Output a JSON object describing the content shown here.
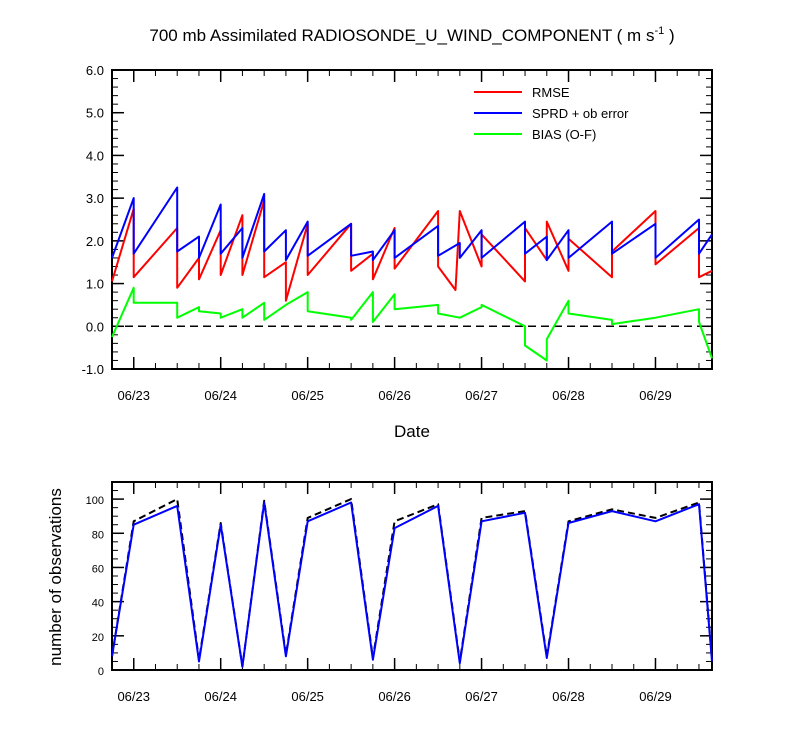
{
  "chart_data": [
    {
      "type": "line",
      "title": "700 mb Assimilated RADIOSONDE_U_WIND_COMPONENT ( m s",
      "title_sup": "-1",
      "title_end": " )",
      "xlabel": "Date",
      "ylabel": "",
      "xlim": [
        0,
        6.9
      ],
      "ylim": [
        -1.0,
        6.0
      ],
      "y_ticks": [
        -1.0,
        0.0,
        1.0,
        2.0,
        3.0,
        4.0,
        5.0,
        6.0
      ],
      "y_tick_labels": [
        "-1.0",
        "0.0",
        "1.0",
        "2.0",
        "3.0",
        "4.0",
        "5.0",
        "6.0"
      ],
      "x_ticks": [
        0.25,
        1.25,
        2.25,
        3.25,
        4.25,
        5.25,
        6.25
      ],
      "x_tick_labels": [
        "06/23",
        "06/24",
        "06/25",
        "06/26",
        "06/27",
        "06/28",
        "06/29"
      ],
      "reference_line": {
        "y": 0,
        "style": "dashed"
      },
      "legend": "top-right",
      "series": [
        {
          "name": "RMSE",
          "color": "#ff0000",
          "x": [
            0,
            0.25,
            0.25,
            0.75,
            0.75,
            1.0,
            1.0,
            1.25,
            1.25,
            1.5,
            1.5,
            1.75,
            1.75,
            2.0,
            2.0,
            2.25,
            2.25,
            2.75,
            2.75,
            3.0,
            3.0,
            3.25,
            3.25,
            3.75,
            3.75,
            3.95,
            4.0,
            4.25,
            4.25,
            4.75,
            4.75,
            5.0,
            5.0,
            5.25,
            5.25,
            5.75,
            5.75,
            6.25,
            6.25,
            6.75,
            6.75,
            6.9
          ],
          "y": [
            1.05,
            2.75,
            1.15,
            2.3,
            0.9,
            1.6,
            1.1,
            2.25,
            1.2,
            2.6,
            1.2,
            2.95,
            1.15,
            1.5,
            0.6,
            2.4,
            1.2,
            2.4,
            1.3,
            1.7,
            1.1,
            2.3,
            1.35,
            2.7,
            1.4,
            0.85,
            2.7,
            1.4,
            2.15,
            1.05,
            2.3,
            1.55,
            2.45,
            1.3,
            2.05,
            1.15,
            1.75,
            2.7,
            1.45,
            2.3,
            1.15,
            1.3
          ]
        },
        {
          "name": "SPRD + ob error",
          "color": "#0000ff",
          "x": [
            0,
            0.25,
            0.25,
            0.75,
            0.75,
            1.0,
            1.0,
            1.25,
            1.25,
            1.5,
            1.5,
            1.75,
            1.75,
            2.0,
            2.0,
            2.25,
            2.25,
            2.75,
            2.75,
            3.0,
            3.0,
            3.25,
            3.25,
            3.75,
            3.75,
            4.0,
            4.0,
            4.25,
            4.25,
            4.75,
            4.75,
            5.0,
            5.0,
            5.25,
            5.25,
            5.75,
            5.75,
            6.25,
            6.25,
            6.75,
            6.75,
            6.9
          ],
          "y": [
            1.6,
            3.0,
            1.7,
            3.25,
            1.75,
            2.1,
            1.6,
            2.85,
            1.7,
            2.3,
            1.6,
            3.1,
            1.75,
            2.25,
            1.55,
            2.45,
            1.65,
            2.4,
            1.65,
            1.75,
            1.55,
            2.25,
            1.6,
            2.35,
            1.65,
            1.95,
            1.6,
            2.25,
            1.6,
            2.45,
            1.7,
            2.1,
            1.55,
            2.25,
            1.6,
            2.45,
            1.7,
            2.4,
            1.6,
            2.5,
            1.7,
            2.15
          ]
        },
        {
          "name": "BIAS (O-F)",
          "color": "#00ff00",
          "x": [
            0,
            0.25,
            0.25,
            0.75,
            0.75,
            1.0,
            1.0,
            1.25,
            1.25,
            1.5,
            1.5,
            1.75,
            1.75,
            2.0,
            2.0,
            2.25,
            2.25,
            2.75,
            2.75,
            3.0,
            3.0,
            3.25,
            3.25,
            3.75,
            3.75,
            4.0,
            4.0,
            4.25,
            4.25,
            4.75,
            4.75,
            5.0,
            5.0,
            5.25,
            5.25,
            5.75,
            5.75,
            6.25,
            6.25,
            6.75,
            6.75,
            6.9
          ],
          "y": [
            -0.25,
            0.9,
            0.55,
            0.55,
            0.2,
            0.45,
            0.35,
            0.3,
            0.2,
            0.4,
            0.2,
            0.55,
            0.15,
            0.5,
            0.5,
            0.8,
            0.35,
            0.2,
            0.15,
            0.8,
            0.1,
            0.75,
            0.4,
            0.5,
            0.3,
            0.2,
            0.2,
            0.45,
            0.5,
            0.0,
            -0.45,
            -0.8,
            -0.3,
            0.6,
            0.3,
            0.15,
            0.05,
            0.2,
            0.2,
            0.4,
            0.1,
            -0.75
          ]
        }
      ]
    },
    {
      "type": "line",
      "xlabel": "",
      "ylabel": "number of observations",
      "xlim": [
        0,
        6.9
      ],
      "ylim": [
        0,
        110
      ],
      "y_ticks": [
        0,
        20,
        40,
        60,
        80,
        100
      ],
      "y_tick_labels": [
        "0",
        "20",
        "40",
        "60",
        "80",
        "100"
      ],
      "x_ticks": [
        0.25,
        1.25,
        2.25,
        3.25,
        4.25,
        5.25,
        6.25
      ],
      "x_tick_labels": [
        "06/23",
        "06/24",
        "06/25",
        "06/26",
        "06/27",
        "06/28",
        "06/29"
      ],
      "series": [
        {
          "name": "",
          "color": "#000000",
          "dashed": true,
          "x": [
            0,
            0.25,
            0.75,
            1.0,
            1.25,
            1.5,
            1.75,
            2.0,
            2.25,
            2.75,
            3.0,
            3.25,
            3.75,
            4.0,
            4.25,
            4.75,
            5.0,
            5.25,
            5.75,
            6.25,
            6.75,
            6.9
          ],
          "y": [
            8,
            87,
            100,
            6,
            86,
            2,
            99,
            9,
            89,
            100,
            7,
            87,
            97,
            5,
            89,
            93,
            8,
            87,
            94,
            89,
            98,
            6
          ]
        },
        {
          "name": "",
          "color": "#0000ff",
          "dashed": false,
          "x": [
            0,
            0.25,
            0.75,
            1.0,
            1.25,
            1.5,
            1.75,
            2.0,
            2.25,
            2.75,
            3.0,
            3.25,
            3.75,
            4.0,
            4.25,
            4.75,
            5.0,
            5.25,
            5.75,
            6.25,
            6.75,
            6.9
          ],
          "y": [
            8,
            85,
            96,
            5,
            85,
            2,
            98,
            8,
            87,
            98,
            6,
            83,
            96,
            4,
            87,
            92,
            7,
            86,
            93,
            87,
            97,
            5
          ]
        }
      ]
    }
  ]
}
